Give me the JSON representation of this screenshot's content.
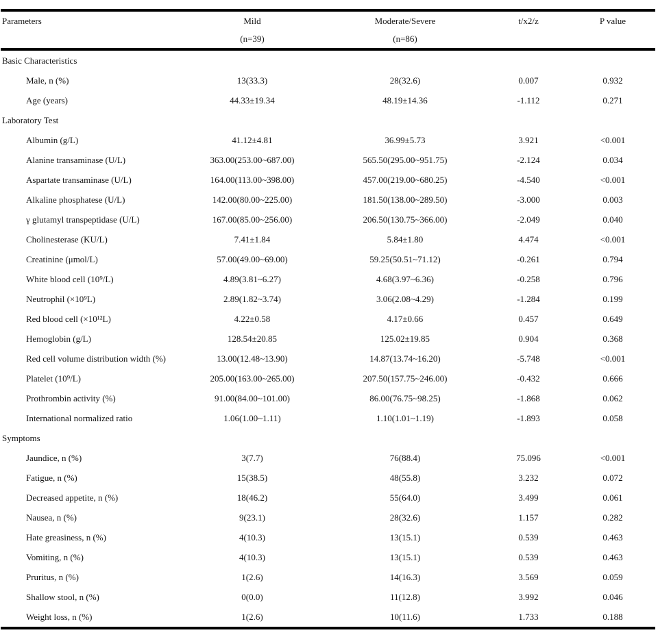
{
  "table": {
    "header": {
      "parameters": "Parameters",
      "group1_label": "Mild",
      "group1_n": "(n=39)",
      "group2_label": "Moderate/Severe",
      "group2_n": "(n=86)",
      "stat_label": "t/x2/z",
      "p_label": "P value"
    },
    "rows": [
      {
        "type": "section",
        "label": "Basic Characteristics"
      },
      {
        "type": "data",
        "label": "Male, n (%)",
        "mild": "13(33.3)",
        "moderate": "28(32.6)",
        "stat": "0.007",
        "p": "0.932"
      },
      {
        "type": "data",
        "label": "Age (years)",
        "mild": "44.33±19.34",
        "moderate": "48.19±14.36",
        "stat": "-1.112",
        "p": "0.271"
      },
      {
        "type": "section",
        "label": "Laboratory Test"
      },
      {
        "type": "data",
        "label": "Albumin  (g/L)",
        "mild": "41.12±4.81",
        "moderate": "36.99±5.73",
        "stat": "3.921",
        "p": "<0.001"
      },
      {
        "type": "data",
        "label": "Alanine transaminase  (U/L)",
        "mild": "363.00(253.00~687.00)",
        "moderate": "565.50(295.00~951.75)",
        "stat": "-2.124",
        "p": "0.034"
      },
      {
        "type": "data",
        "label": "Aspartate transaminase  (U/L)",
        "mild": "164.00(113.00~398.00)",
        "moderate": "457.00(219.00~680.25)",
        "stat": "-4.540",
        "p": "<0.001"
      },
      {
        "type": "data",
        "label": "Alkaline phosphatese  (U/L)",
        "mild": "142.00(80.00~225.00)",
        "moderate": "181.50(138.00~289.50)",
        "stat": "-3.000",
        "p": "0.003"
      },
      {
        "type": "data",
        "label": "γ glutamyl transpeptidase  (U/L)",
        "mild": "167.00(85.00~256.00)",
        "moderate": "206.50(130.75~366.00)",
        "stat": "-2.049",
        "p": "0.040"
      },
      {
        "type": "data",
        "label": "Cholinesterase  (KU/L)",
        "mild": "7.41±1.84",
        "moderate": "5.84±1.80",
        "stat": "4.474",
        "p": "<0.001"
      },
      {
        "type": "data",
        "label": "Creatinine (μmol/L)",
        "mild": "57.00(49.00~69.00)",
        "moderate": "59.25(50.51~71.12)",
        "stat": "-0.261",
        "p": "0.794"
      },
      {
        "type": "data",
        "label": "White blood cell  (10⁹/L)",
        "mild": "4.89(3.81~6.27)",
        "moderate": "4.68(3.97~6.36)",
        "stat": "-0.258",
        "p": "0.796"
      },
      {
        "type": "data",
        "label": "Neutrophil (×10⁹L)",
        "mild": "2.89(1.82~3.74)",
        "moderate": "3.06(2.08~4.29)",
        "stat": "-1.284",
        "p": "0.199"
      },
      {
        "type": "data",
        "label": "Red blood cell (×10¹²L)",
        "mild": "4.22±0.58",
        "moderate": "4.17±0.66",
        "stat": "0.457",
        "p": "0.649"
      },
      {
        "type": "data",
        "label": "Hemoglobin  (g/L)",
        "mild": "128.54±20.85",
        "moderate": "125.02±19.85",
        "stat": "0.904",
        "p": "0.368"
      },
      {
        "type": "data",
        "label": "Red cell volume distribution width (%)",
        "mild": "13.00(12.48~13.90)",
        "moderate": "14.87(13.74~16.20)",
        "stat": "-5.748",
        "p": "<0.001"
      },
      {
        "type": "data",
        "label": "Platelet  (10⁹/L)",
        "mild": "205.00(163.00~265.00)",
        "moderate": "207.50(157.75~246.00)",
        "stat": "-0.432",
        "p": "0.666"
      },
      {
        "type": "data",
        "label": "Prothrombin activity  (%)",
        "mild": "91.00(84.00~101.00)",
        "moderate": "86.00(76.75~98.25)",
        "stat": "-1.868",
        "p": "0.062"
      },
      {
        "type": "data",
        "label": "International normalized ratio",
        "mild": "1.06(1.00~1.11)",
        "moderate": "1.10(1.01~1.19)",
        "stat": "-1.893",
        "p": "0.058"
      },
      {
        "type": "section",
        "label": "Symptoms"
      },
      {
        "type": "data",
        "label": "Jaundice, n (%)",
        "mild": "3(7.7)",
        "moderate": "76(88.4)",
        "stat": "75.096",
        "p": "<0.001"
      },
      {
        "type": "data",
        "label": "Fatigue, n (%)",
        "mild": "15(38.5)",
        "moderate": "48(55.8)",
        "stat": "3.232",
        "p": "0.072"
      },
      {
        "type": "data",
        "label": "Decreased appetite, n (%)",
        "mild": "18(46.2)",
        "moderate": "55(64.0)",
        "stat": "3.499",
        "p": "0.061"
      },
      {
        "type": "data",
        "label": "Nausea, n (%)",
        "mild": "9(23.1)",
        "moderate": "28(32.6)",
        "stat": "1.157",
        "p": "0.282"
      },
      {
        "type": "data",
        "label": "Hate greasiness, n (%)",
        "mild": "4(10.3)",
        "moderate": "13(15.1)",
        "stat": "0.539",
        "p": "0.463"
      },
      {
        "type": "data",
        "label": "Vomiting, n (%)",
        "mild": "4(10.3)",
        "moderate": "13(15.1)",
        "stat": "0.539",
        "p": "0.463"
      },
      {
        "type": "data",
        "label": "Pruritus, n (%)",
        "mild": "1(2.6)",
        "moderate": "14(16.3)",
        "stat": "3.569",
        "p": "0.059"
      },
      {
        "type": "data",
        "label": "Shallow stool, n (%)",
        "mild": "0(0.0)",
        "moderate": "11(12.8)",
        "stat": "3.992",
        "p": "0.046"
      },
      {
        "type": "data",
        "label": "Weight loss, n (%)",
        "mild": "1(2.6)",
        "moderate": "10(11.6)",
        "stat": "1.733",
        "p": "0.188"
      }
    ]
  }
}
